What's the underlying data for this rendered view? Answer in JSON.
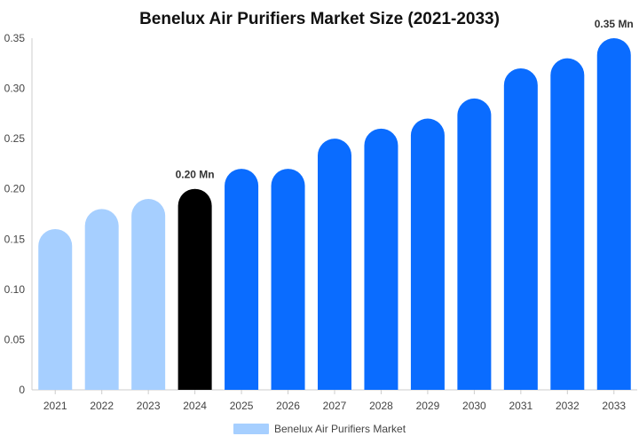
{
  "chart_data": {
    "type": "bar",
    "title": "Benelux Air Purifiers Market Size (2021-2033)",
    "xlabel": "",
    "ylabel": "",
    "categories": [
      "2021",
      "2022",
      "2023",
      "2024",
      "2025",
      "2026",
      "2027",
      "2028",
      "2029",
      "2030",
      "2031",
      "2032",
      "2033"
    ],
    "series": [
      {
        "name": "Benelux Air Purifiers Market",
        "values": [
          0.16,
          0.18,
          0.19,
          0.2,
          0.22,
          0.22,
          0.25,
          0.26,
          0.27,
          0.29,
          0.32,
          0.33,
          0.35
        ]
      }
    ],
    "ylim": [
      0,
      0.35
    ],
    "yticks": [
      "0",
      "0.05",
      "0.10",
      "0.15",
      "0.20",
      "0.25",
      "0.30",
      "0.35"
    ],
    "data_labels": [
      {
        "category": "2024",
        "text": "0.20 Mn"
      },
      {
        "category": "2033",
        "text": "0.35 Mn"
      }
    ],
    "bar_colors": {
      "historical": "#a6cfff",
      "base_year": "#000000",
      "forecast": "#0a6cff"
    },
    "color_groups": [
      "historical",
      "historical",
      "historical",
      "base_year",
      "forecast",
      "forecast",
      "forecast",
      "forecast",
      "forecast",
      "forecast",
      "forecast",
      "forecast",
      "forecast"
    ],
    "grid": false,
    "legend": "bottom-center"
  }
}
